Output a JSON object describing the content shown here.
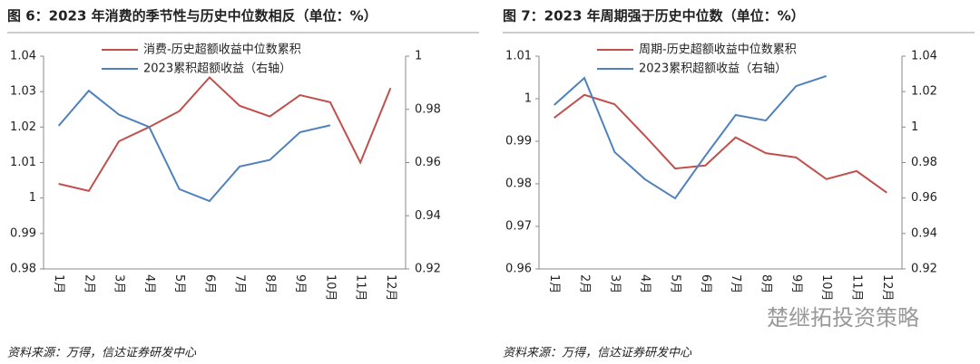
{
  "chart_data": [
    {
      "type": "line",
      "title": "图 6：2023 年消费的季节性与历史中位数相反（单位：%）",
      "categories": [
        "1月",
        "2月",
        "3月",
        "4月",
        "5月",
        "6月",
        "7月",
        "8月",
        "9月",
        "10月",
        "11月",
        "12月"
      ],
      "series": [
        {
          "name": "消费-历史超额收益中位数累积",
          "color": "#c0504d",
          "values": [
            1.004,
            1.002,
            1.016,
            1.02,
            1.0245,
            1.034,
            1.026,
            1.023,
            1.029,
            1.027,
            1.01,
            1.031
          ]
        },
        {
          "name": "2023累积超额收益（右轴）",
          "color": "#4f81bd",
          "axis": "y2",
          "values": [
            0.9738,
            0.987,
            0.978,
            0.9734,
            0.95,
            0.9455,
            0.9585,
            0.961,
            0.9714,
            0.974,
            null,
            null
          ]
        }
      ],
      "ylim": [
        0.98,
        1.04
      ],
      "yticks": [
        0.98,
        0.99,
        1,
        1.01,
        1.02,
        1.03,
        1.04
      ],
      "y2lim": [
        0.92,
        1
      ],
      "y2ticks": [
        0.92,
        0.94,
        0.96,
        0.98,
        1
      ],
      "source": "资料来源：万得，信达证券研发中心"
    },
    {
      "type": "line",
      "title": "图 7：2023 年周期强于历史中位数（单位：%）",
      "categories": [
        "1月",
        "2月",
        "3月",
        "4月",
        "5月",
        "6月",
        "7月",
        "8月",
        "9月",
        "10月",
        "11月",
        "12月"
      ],
      "series": [
        {
          "name": "周期-历史超额收益中位数累积",
          "color": "#c0504d",
          "values": [
            0.9955,
            1.0009,
            0.9987,
            0.9913,
            0.9836,
            0.9843,
            0.9909,
            0.9872,
            0.9862,
            0.9811,
            0.983,
            0.9779
          ]
        },
        {
          "name": "2023累积超额收益（右轴）",
          "color": "#4f81bd",
          "axis": "y2",
          "values": [
            1.0124,
            1.0277,
            0.9859,
            0.9706,
            0.9598,
            0.9838,
            1.0068,
            1.0037,
            1.0231,
            1.0288,
            null,
            null
          ]
        }
      ],
      "ylim": [
        0.96,
        1.01
      ],
      "yticks": [
        0.96,
        0.97,
        0.98,
        0.99,
        1,
        1.01
      ],
      "y2lim": [
        0.92,
        1.04
      ],
      "y2ticks": [
        0.92,
        0.94,
        0.96,
        0.98,
        1,
        1.02,
        1.04
      ],
      "source": "资料来源：万得，信达证券研发中心"
    }
  ],
  "watermark": "楚继拓投资策略"
}
